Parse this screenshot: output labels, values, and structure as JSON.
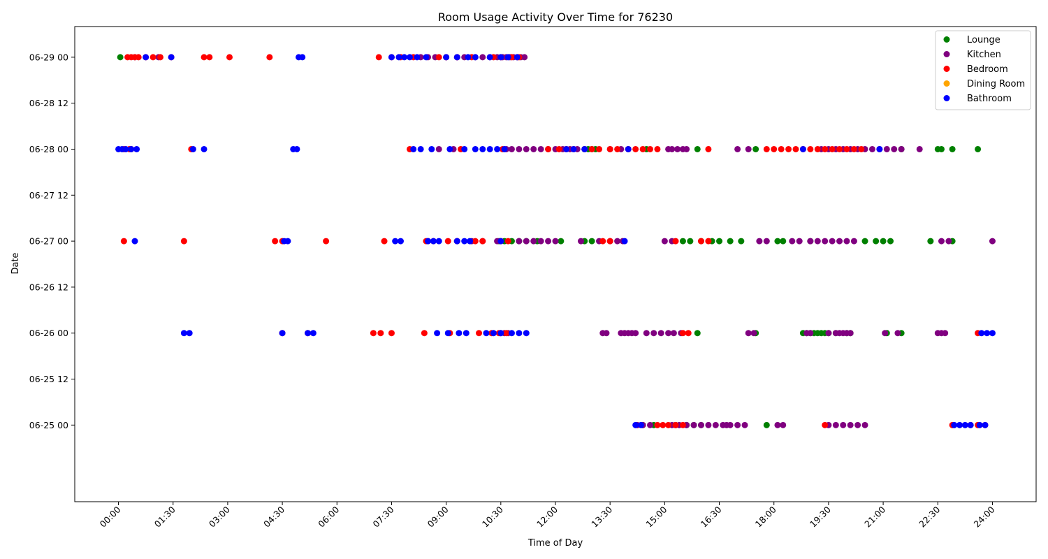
{
  "chart_data": {
    "type": "scatter",
    "title": "Room Usage Activity Over Time for 76230",
    "xlabel": "Time of Day",
    "ylabel": "Date",
    "xlim_hours": [
      -1.2,
      25.2
    ],
    "ylim_hours_from_0625": [
      -20,
      104
    ],
    "x_ticks": [
      {
        "h": 0,
        "label": "00:00"
      },
      {
        "h": 1.5,
        "label": "01:30"
      },
      {
        "h": 3,
        "label": "03:00"
      },
      {
        "h": 4.5,
        "label": "04:30"
      },
      {
        "h": 6,
        "label": "06:00"
      },
      {
        "h": 7.5,
        "label": "07:30"
      },
      {
        "h": 9,
        "label": "09:00"
      },
      {
        "h": 10.5,
        "label": "10:30"
      },
      {
        "h": 12,
        "label": "12:00"
      },
      {
        "h": 13.5,
        "label": "13:30"
      },
      {
        "h": 15,
        "label": "15:00"
      },
      {
        "h": 16.5,
        "label": "16:30"
      },
      {
        "h": 18,
        "label": "18:00"
      },
      {
        "h": 19.5,
        "label": "19:30"
      },
      {
        "h": 21,
        "label": "21:00"
      },
      {
        "h": 22.5,
        "label": "22:30"
      },
      {
        "h": 24,
        "label": "24:00"
      }
    ],
    "y_ticks": [
      {
        "h": 0,
        "label": "06-25 00"
      },
      {
        "h": 12,
        "label": "06-25 12"
      },
      {
        "h": 24,
        "label": "06-26 00"
      },
      {
        "h": 36,
        "label": "06-26 12"
      },
      {
        "h": 48,
        "label": "06-27 00"
      },
      {
        "h": 60,
        "label": "06-27 12"
      },
      {
        "h": 72,
        "label": "06-28 00"
      },
      {
        "h": 84,
        "label": "06-28 12"
      },
      {
        "h": 96,
        "label": "06-29 00"
      }
    ],
    "legend": {
      "position": "top-right"
    },
    "series": [
      {
        "name": "Lounge",
        "color": "#008000",
        "points": [
          {
            "date": "06-29 00",
            "times": [
              0.05
            ]
          },
          {
            "date": "06-28 00",
            "times": [
              12.8,
              12.9,
              13.0,
              13.1,
              14.5,
              15.9,
              17.5,
              21.5,
              22.5,
              22.6,
              22.9,
              23.6
            ]
          },
          {
            "date": "06-27 00",
            "times": [
              10.45,
              10.6,
              10.8,
              11.0,
              11.2,
              11.5,
              12.15,
              12.8,
              13.0,
              15.5,
              15.7,
              16.0,
              16.3,
              16.5,
              16.8,
              17.1,
              18.1,
              18.25,
              19.0,
              20.5,
              20.8,
              21.0,
              21.2,
              22.3,
              22.9
            ]
          },
          {
            "date": "06-26 00",
            "times": [
              15.9,
              17.5,
              18.8,
              18.9,
              19.0,
              19.1,
              19.2,
              19.3,
              19.4,
              19.5,
              19.7,
              20.0,
              20.1,
              21.1,
              21.5
            ]
          },
          {
            "date": "06-25 00",
            "times": [
              14.4,
              14.7,
              15.3,
              15.6,
              15.8,
              16.0,
              17.8
            ]
          }
        ]
      },
      {
        "name": "Kitchen",
        "color": "#800080",
        "points": [
          {
            "date": "06-29 00",
            "times": [
              0.45,
              1.1,
              8.3,
              8.5,
              8.7,
              9.0,
              9.3,
              9.5,
              9.8,
              10.0,
              10.2,
              10.4,
              10.55,
              10.65,
              10.75,
              10.85,
              10.95,
              11.05,
              11.15
            ]
          },
          {
            "date": "06-28 00",
            "times": [
              8.8,
              9.2,
              10.65,
              10.8,
              11.0,
              11.2,
              11.4,
              11.6,
              11.8,
              12.0,
              12.2,
              12.4,
              12.6,
              13.5,
              13.8,
              14.0,
              15.1,
              15.2,
              15.35,
              15.5,
              15.6,
              17.0,
              17.3,
              19.3,
              19.5,
              19.7,
              19.9,
              20.1,
              20.3,
              20.5,
              20.7,
              20.9,
              21.1,
              21.3,
              21.5,
              22.0
            ]
          },
          {
            "date": "06-27 00",
            "times": [
              8.5,
              9.3,
              9.7,
              10.0,
              10.4,
              11.0,
              11.2,
              11.4,
              11.6,
              11.8,
              12.0,
              12.7,
              13.2,
              13.5,
              13.7,
              13.85,
              15.0,
              15.2,
              17.6,
              17.8,
              18.5,
              18.7,
              19.0,
              19.2,
              19.4,
              19.6,
              19.8,
              20.0,
              20.2,
              22.6,
              22.8,
              24.0
            ]
          },
          {
            "date": "06-26 00",
            "times": [
              10.5,
              10.6,
              10.7,
              13.3,
              13.4,
              13.8,
              13.9,
              14.0,
              14.1,
              14.2,
              14.5,
              14.7,
              14.9,
              15.1,
              15.25,
              15.45,
              17.3,
              17.45,
              18.9,
              19.0,
              19.5,
              19.7,
              19.8,
              19.9,
              20.0,
              20.1,
              21.05,
              21.4,
              22.5,
              22.6,
              22.7
            ]
          },
          {
            "date": "06-25 00",
            "times": [
              14.25,
              14.4,
              14.6,
              15.2,
              15.4,
              15.6,
              15.8,
              16.0,
              16.2,
              16.4,
              16.6,
              16.7,
              16.8,
              17.0,
              17.2,
              18.1,
              18.25,
              19.5,
              19.7,
              19.9,
              20.1,
              20.3,
              20.5
            ]
          }
        ]
      },
      {
        "name": "Bedroom",
        "color": "#ff0000",
        "points": [
          {
            "date": "06-29 00",
            "times": [
              0.25,
              0.35,
              0.45,
              0.55,
              0.75,
              0.95,
              1.15,
              1.45,
              2.35,
              2.5,
              3.05,
              4.15,
              7.15,
              7.5,
              7.75,
              8.1,
              8.8,
              9.0,
              9.3,
              9.7,
              10.3,
              10.5,
              10.8,
              11.0
            ]
          },
          {
            "date": "06-28 00",
            "times": [
              0.15,
              0.3,
              0.35,
              2.0,
              8.0,
              9.4,
              10.55,
              11.8,
              12.1,
              12.3,
              12.5,
              12.8,
              13.0,
              13.2,
              13.5,
              13.7,
              14.0,
              14.2,
              14.4,
              14.6,
              14.8,
              16.2,
              17.8,
              18.0,
              18.2,
              18.4,
              18.6,
              18.8,
              19.0,
              19.2,
              19.4,
              19.6,
              19.8,
              20.0,
              20.2,
              20.4
            ]
          },
          {
            "date": "06-27 00",
            "times": [
              0.15,
              1.8,
              4.3,
              4.5,
              5.7,
              7.3,
              8.45,
              8.65,
              9.05,
              9.3,
              9.8,
              10.0,
              10.5,
              10.7,
              13.3,
              13.5,
              15.3,
              16.0,
              16.2
            ]
          },
          {
            "date": "06-26 00",
            "times": [
              4.5,
              5.2,
              7.0,
              7.2,
              7.5,
              8.4,
              9.1,
              9.9,
              10.25,
              10.45,
              10.65,
              15.5,
              15.65,
              23.6
            ]
          },
          {
            "date": "06-25 00",
            "times": [
              14.8,
              14.95,
              15.1,
              15.3,
              15.5,
              19.4,
              22.9,
              23.4,
              23.6,
              23.8
            ]
          }
        ]
      },
      {
        "name": "Dining Room",
        "color": "#ffa500",
        "points": []
      },
      {
        "name": "Bathroom",
        "color": "#0000ff",
        "points": [
          {
            "date": "06-29 00",
            "times": [
              0.75,
              1.45,
              4.95,
              5.05,
              7.5,
              7.7,
              7.85,
              8.0,
              8.2,
              8.45,
              9.0,
              9.3,
              9.6,
              9.8,
              10.2,
              10.5,
              10.7,
              10.95
            ]
          },
          {
            "date": "06-28 00",
            "times": [
              0.0,
              0.1,
              0.2,
              0.35,
              0.5,
              2.05,
              2.35,
              4.8,
              4.9,
              8.1,
              8.3,
              8.6,
              9.1,
              9.5,
              9.8,
              10.0,
              10.2,
              10.4,
              10.6,
              12.3,
              12.5,
              12.8,
              14.0,
              18.8,
              20.9
            ]
          },
          {
            "date": "06-27 00",
            "times": [
              0.45,
              4.55,
              4.65,
              7.6,
              7.75,
              8.5,
              8.65,
              8.8,
              9.3,
              9.5,
              9.65,
              10.5,
              13.9
            ]
          },
          {
            "date": "06-26 00",
            "times": [
              1.8,
              1.95,
              4.5,
              5.2,
              5.35,
              8.75,
              9.05,
              9.35,
              9.55,
              10.1,
              10.3,
              10.5,
              10.8,
              11.0,
              11.2,
              23.7,
              23.85,
              24.0
            ]
          },
          {
            "date": "06-25 00",
            "times": [
              14.2,
              14.35,
              22.95,
              23.1,
              23.25,
              23.4,
              23.65,
              23.8
            ]
          }
        ]
      }
    ]
  }
}
